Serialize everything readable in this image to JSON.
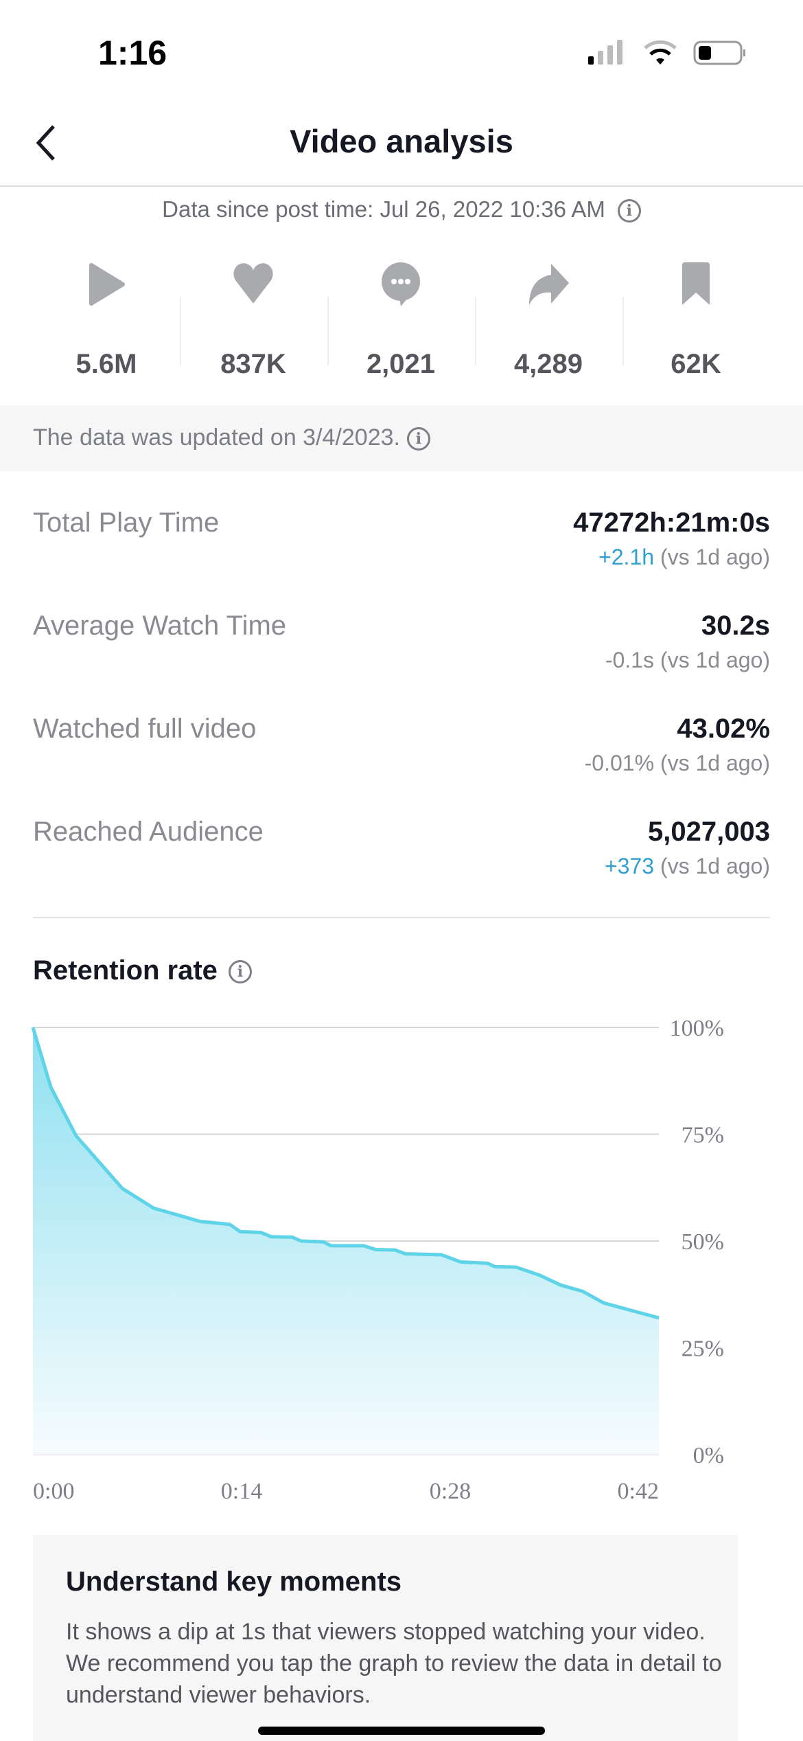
{
  "status_bar": {
    "time": "1:16"
  },
  "header": {
    "title": "Video analysis"
  },
  "since": {
    "text": "Data since post time: Jul 26, 2022 10:36 AM"
  },
  "stats": [
    {
      "icon": "play-icon",
      "value": "5.6M"
    },
    {
      "icon": "heart-icon",
      "value": "837K"
    },
    {
      "icon": "comment-icon",
      "value": "2,021"
    },
    {
      "icon": "share-icon",
      "value": "4,289"
    },
    {
      "icon": "bookmark-icon",
      "value": "62K"
    }
  ],
  "updated": {
    "text": "The data was updated on 3/4/2023."
  },
  "metrics": [
    {
      "label": "Total Play Time",
      "value": "47272h:21m:0s",
      "change": "+2.1h",
      "compare": "(vs 1d ago)",
      "positive": true
    },
    {
      "label": "Average Watch Time",
      "value": "30.2s",
      "change": "-0.1s",
      "compare": "(vs 1d ago)",
      "positive": false
    },
    {
      "label": "Watched full video",
      "value": "43.02%",
      "change": "-0.01%",
      "compare": "(vs 1d ago)",
      "positive": false
    },
    {
      "label": "Reached Audience",
      "value": "5,027,003",
      "change": "+373",
      "compare": "(vs 1d ago)",
      "positive": true
    }
  ],
  "retention": {
    "title": "Retention rate"
  },
  "chart_data": {
    "type": "area",
    "x_unit": "seconds",
    "x": [
      0,
      1.2,
      2.9,
      6,
      8.1,
      11.2,
      13.2,
      13.9,
      15.3,
      16,
      17.4,
      18,
      19.5,
      20,
      22.2,
      23,
      24.3,
      25,
      27.4,
      28.7,
      30.5,
      31,
      32.4,
      34,
      35.4,
      36.9,
      38.3,
      42
    ],
    "y": [
      100,
      86,
      74.6,
      62.3,
      57.7,
      54.6,
      53.9,
      52.2,
      52,
      51,
      50.9,
      50,
      49.8,
      48.9,
      48.9,
      48,
      47.9,
      47,
      46.8,
      45.1,
      44.8,
      44,
      43.9,
      42,
      39.7,
      38.2,
      35.5,
      32
    ],
    "xlim": [
      0,
      42
    ],
    "ylim": [
      0,
      100
    ],
    "x_ticks": [
      "0:00",
      "0:14",
      "0:28",
      "0:42"
    ],
    "y_ticks": [
      "100%",
      "75%",
      "50%",
      "25%",
      "0%"
    ],
    "grid": true,
    "line_color": "#5fd3e8"
  },
  "card": {
    "title": "Understand key moments",
    "text": "It shows a dip at 1s that viewers stopped watching your video. We recommend you tap the graph to review the data in detail to understand viewer behaviors."
  }
}
